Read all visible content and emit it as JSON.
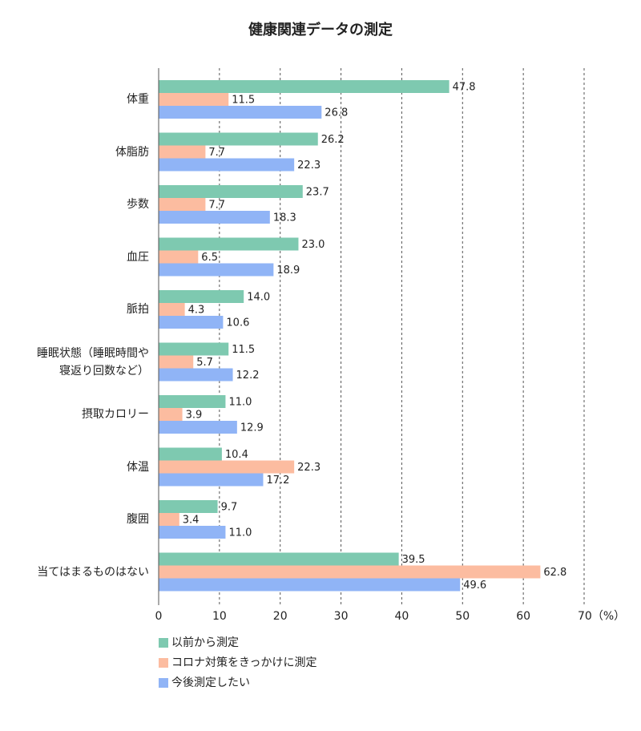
{
  "chart_data": {
    "type": "bar",
    "orientation": "horizontal",
    "title": "健康関連データの測定",
    "categories": [
      "体重",
      "体脂肪",
      "歩数",
      "血圧",
      "脈拍",
      "睡眠状態（睡眠時間や\n寝返り回数など）",
      "摂取カロリー",
      "体温",
      "腹囲",
      "当てはまるものはない"
    ],
    "series": [
      {
        "name": "以前から測定",
        "color": "#7ec9b0",
        "values": [
          47.8,
          26.2,
          23.7,
          23.0,
          14.0,
          11.5,
          11.0,
          10.4,
          9.7,
          39.5
        ],
        "value_labels": [
          "47.8",
          "26.2",
          "23.7",
          "23.0",
          "14.0",
          "11.5",
          "11.0",
          "10.4",
          "9.7",
          "39.5"
        ]
      },
      {
        "name": "コロナ対策をきっかけに測定",
        "color": "#fcbca0",
        "values": [
          11.5,
          7.7,
          7.7,
          6.5,
          4.3,
          5.7,
          3.9,
          22.3,
          3.4,
          62.8
        ],
        "value_labels": [
          "11.5",
          "7.7",
          "7.7",
          "6.5",
          "4.3",
          "5.7",
          "3.9",
          "22.3",
          "3.4",
          "62.8"
        ]
      },
      {
        "name": "今後測定したい",
        "color": "#90b4f6",
        "values": [
          26.8,
          22.3,
          18.3,
          18.9,
          10.6,
          12.2,
          12.9,
          17.2,
          11.0,
          49.6
        ],
        "value_labels": [
          "26.8",
          "22.3",
          "18.3",
          "18.9",
          "10.6",
          "12.2",
          "12.9",
          "17.2",
          "11.0",
          "49.6"
        ]
      }
    ],
    "xlim": [
      0,
      70
    ],
    "xticks": [
      0,
      10,
      20,
      30,
      40,
      50,
      60,
      {
        "value": 70,
        "label": "70（%）"
      }
    ],
    "grid": true,
    "legend": "bottom-left"
  }
}
